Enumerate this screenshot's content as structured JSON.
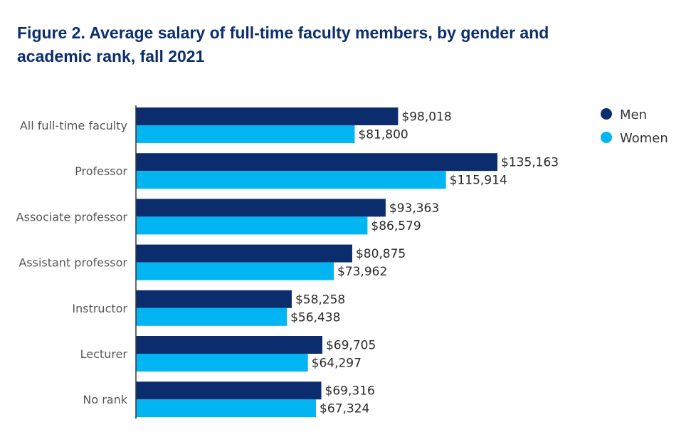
{
  "title_line1": "Figure 2. Average salary of full-time faculty members, by gender and",
  "title_line2": "academic rank, fall 2021",
  "colors": {
    "men": "#0b2d6e",
    "women": "#00b5f1",
    "axis": "#333333",
    "title": "#0b2e6f"
  },
  "chart_data": {
    "type": "bar",
    "orientation": "horizontal",
    "title": "Figure 2. Average salary of full-time faculty members, by gender and academic rank, fall 2021",
    "categories": [
      "All full-time faculty",
      "Professor",
      "Associate professor",
      "Assistant professor",
      "Instructor",
      "Lecturer",
      "No rank"
    ],
    "series": [
      {
        "name": "Men",
        "values": [
          98018,
          135163,
          93363,
          80875,
          58258,
          69705,
          69316
        ],
        "labels": [
          "$98,018",
          "$135,163",
          "$93,363",
          "$80,875",
          "$58,258",
          "$69,705",
          "$69,316"
        ]
      },
      {
        "name": "Women",
        "values": [
          81800,
          115914,
          86579,
          73962,
          56438,
          64297,
          67324
        ],
        "labels": [
          "$81,800",
          "$115,914",
          "$86,579",
          "$73,962",
          "$56,438",
          "$64,297",
          "$67,324"
        ]
      }
    ],
    "xlim": [
      0,
      135163
    ],
    "grid": false,
    "legend": "top-right"
  }
}
